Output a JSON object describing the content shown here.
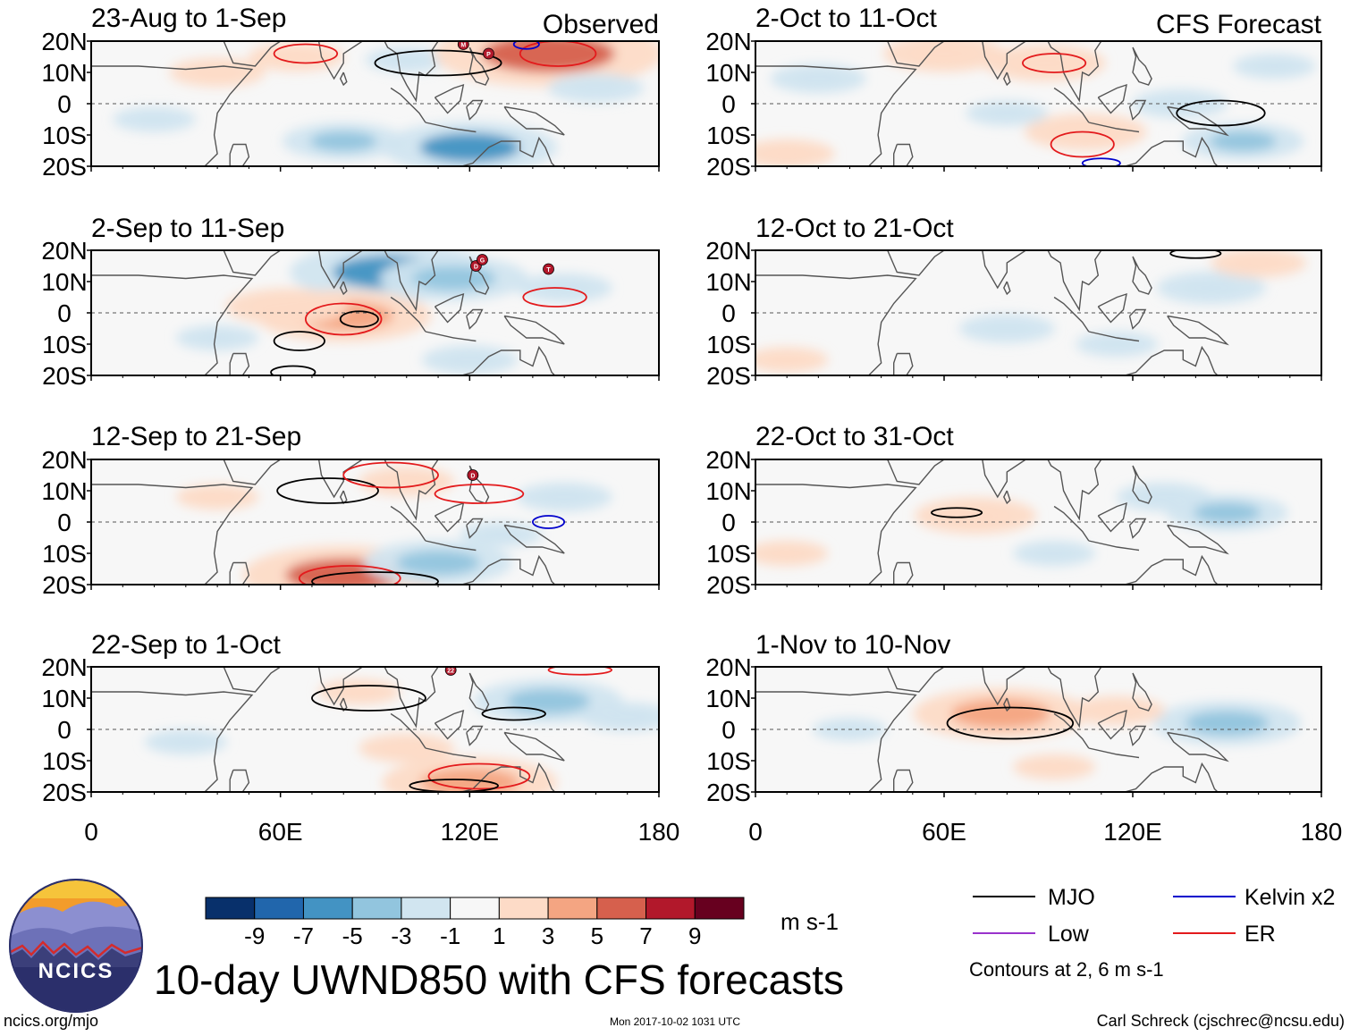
{
  "figure": {
    "title": "10-day UWND850 with CFS forecasts",
    "left_header": "Observed",
    "right_header": "CFS Forecast",
    "source_url": "ncics.org/mjo",
    "timestamp": "Mon 2017-10-02 1031 UTC",
    "author": "Carl Schreck (cjschrec@ncsu.edu)",
    "logo_text": "NCICS"
  },
  "colors": {
    "bins": [
      "#08306b",
      "#2166ac",
      "#4393c3",
      "#92c5de",
      "#d1e5f0",
      "#f7f7f7",
      "#fddbc7",
      "#f4a582",
      "#d6604d",
      "#b2182b",
      "#67001f"
    ],
    "mjo": "#000000",
    "kelvin": "#0000cc",
    "low": "#9933cc",
    "er": "#e31a1c",
    "coast": "#555555",
    "ocean": "#e7f1f8",
    "land": "#f7f7f7"
  },
  "chart_data": {
    "type": "heatmap",
    "variable": "UWND850 anomaly",
    "units": "m s-1",
    "colorbar_ticks": [
      "-9",
      "-7",
      "-5",
      "-3",
      "-1",
      "1",
      "3",
      "5",
      "7",
      "9"
    ],
    "colorbar_levels": [
      -9,
      -7,
      -5,
      -3,
      -1,
      1,
      3,
      5,
      7,
      9
    ],
    "x_ticks": [
      "0",
      "60E",
      "120E",
      "180"
    ],
    "x_ticks_values": [
      0,
      60,
      120,
      180
    ],
    "y_ticks": [
      "20N",
      "10N",
      "0",
      "10S",
      "20S"
    ],
    "y_ticks_values": [
      20,
      10,
      0,
      -10,
      -20
    ],
    "xlim": [
      0,
      180
    ],
    "ylim": [
      -20,
      20
    ],
    "panels": [
      {
        "title": "23-Aug to 1-Sep",
        "source": "Observed",
        "blobs": [
          {
            "lon": 40,
            "lat": 10,
            "val": 2
          },
          {
            "lon": 100,
            "lat": 14,
            "val": -1.5
          },
          {
            "lon": 145,
            "lat": 16,
            "val": 7
          },
          {
            "lon": 120,
            "lat": -14,
            "val": -5
          },
          {
            "lon": 80,
            "lat": -12,
            "val": -3
          },
          {
            "lon": 65,
            "lat": 15,
            "val": 2
          },
          {
            "lon": 160,
            "lat": 5,
            "val": -2
          },
          {
            "lon": 20,
            "lat": -5,
            "val": -1.5
          }
        ],
        "contours": [
          {
            "kind": "mjo",
            "lon": 110,
            "lat": 13,
            "rx": 20,
            "ry": 4
          },
          {
            "kind": "er",
            "lon": 68,
            "lat": 16,
            "rx": 10,
            "ry": 3
          },
          {
            "kind": "er",
            "lon": 148,
            "lat": 16,
            "rx": 12,
            "ry": 4
          },
          {
            "kind": "kelvin",
            "lon": 138,
            "lat": 19,
            "rx": 4,
            "ry": 1.5
          }
        ],
        "storms": [
          {
            "label": "M",
            "lon": 118,
            "lat": 19
          },
          {
            "label": "P",
            "lon": 126,
            "lat": 16
          }
        ]
      },
      {
        "title": "2-Sep to 11-Sep",
        "source": "Observed",
        "blobs": [
          {
            "lon": 95,
            "lat": 13,
            "val": -6
          },
          {
            "lon": 115,
            "lat": 11,
            "val": -4
          },
          {
            "lon": 80,
            "lat": -1,
            "val": 5
          },
          {
            "lon": 62,
            "lat": 2,
            "val": 3
          },
          {
            "lon": 150,
            "lat": 8,
            "val": -2
          },
          {
            "lon": 40,
            "lat": -8,
            "val": -1.5
          },
          {
            "lon": 120,
            "lat": -15,
            "val": -2
          }
        ],
        "contours": [
          {
            "kind": "er",
            "lon": 80,
            "lat": -2,
            "rx": 12,
            "ry": 5
          },
          {
            "kind": "mjo",
            "lon": 85,
            "lat": -2,
            "rx": 6,
            "ry": 2.5
          },
          {
            "kind": "mjo",
            "lon": 66,
            "lat": -9,
            "rx": 8,
            "ry": 3
          },
          {
            "kind": "mjo",
            "lon": 64,
            "lat": -19,
            "rx": 7,
            "ry": 2
          },
          {
            "kind": "er",
            "lon": 147,
            "lat": 5,
            "rx": 10,
            "ry": 3
          }
        ],
        "storms": [
          {
            "label": "D",
            "lon": 122,
            "lat": 15
          },
          {
            "label": "G",
            "lon": 124,
            "lat": 17
          },
          {
            "label": "T",
            "lon": 145,
            "lat": 14
          }
        ]
      },
      {
        "title": "12-Sep to 21-Sep",
        "source": "Observed",
        "blobs": [
          {
            "lon": 80,
            "lat": -17,
            "val": 6
          },
          {
            "lon": 110,
            "lat": -13,
            "val": -4
          },
          {
            "lon": 100,
            "lat": 13,
            "val": 2
          },
          {
            "lon": 150,
            "lat": 8,
            "val": -2
          },
          {
            "lon": 40,
            "lat": 8,
            "val": 1.5
          },
          {
            "lon": 130,
            "lat": -4,
            "val": -1.5
          }
        ],
        "contours": [
          {
            "kind": "mjo",
            "lon": 75,
            "lat": 10,
            "rx": 16,
            "ry": 4
          },
          {
            "kind": "er",
            "lon": 95,
            "lat": 15,
            "rx": 15,
            "ry": 4
          },
          {
            "kind": "er",
            "lon": 123,
            "lat": 9,
            "rx": 14,
            "ry": 3
          },
          {
            "kind": "kelvin",
            "lon": 145,
            "lat": 0,
            "rx": 5,
            "ry": 2
          },
          {
            "kind": "er",
            "lon": 82,
            "lat": -18,
            "rx": 16,
            "ry": 4
          },
          {
            "kind": "mjo",
            "lon": 90,
            "lat": -19,
            "rx": 20,
            "ry": 3
          }
        ],
        "storms": [
          {
            "label": "D",
            "lon": 121,
            "lat": 15
          }
        ]
      },
      {
        "title": "22-Sep to 1-Oct",
        "source": "Observed",
        "blobs": [
          {
            "lon": 145,
            "lat": 9,
            "val": -4
          },
          {
            "lon": 120,
            "lat": -17,
            "val": 5
          },
          {
            "lon": 100,
            "lat": -6,
            "val": 2
          },
          {
            "lon": 170,
            "lat": 4,
            "val": -2
          },
          {
            "lon": 30,
            "lat": -4,
            "val": -1.5
          },
          {
            "lon": 85,
            "lat": 12,
            "val": 1.5
          }
        ],
        "contours": [
          {
            "kind": "mjo",
            "lon": 88,
            "lat": 10,
            "rx": 18,
            "ry": 4
          },
          {
            "kind": "mjo",
            "lon": 134,
            "lat": 5,
            "rx": 10,
            "ry": 2
          },
          {
            "kind": "er",
            "lon": 123,
            "lat": -15,
            "rx": 16,
            "ry": 4
          },
          {
            "kind": "mjo",
            "lon": 115,
            "lat": -18,
            "rx": 14,
            "ry": 2
          },
          {
            "kind": "er",
            "lon": 155,
            "lat": 19,
            "rx": 10,
            "ry": 1.5
          }
        ],
        "storms": [
          {
            "label": "22",
            "lon": 114,
            "lat": 19
          }
        ]
      },
      {
        "title": "2-Oct to 11-Oct",
        "source": "CFS Forecast",
        "blobs": [
          {
            "lon": 60,
            "lat": 16,
            "val": 3
          },
          {
            "lon": 92,
            "lat": 13,
            "val": 3
          },
          {
            "lon": 105,
            "lat": -9,
            "val": 3
          },
          {
            "lon": 155,
            "lat": -12,
            "val": -3
          },
          {
            "lon": 135,
            "lat": 0,
            "val": -2
          },
          {
            "lon": 20,
            "lat": 8,
            "val": -2
          },
          {
            "lon": 10,
            "lat": -16,
            "val": 2
          },
          {
            "lon": 80,
            "lat": -3,
            "val": -1.5
          },
          {
            "lon": 165,
            "lat": 12,
            "val": -1.5
          }
        ],
        "contours": [
          {
            "kind": "er",
            "lon": 95,
            "lat": 13,
            "rx": 10,
            "ry": 3
          },
          {
            "kind": "er",
            "lon": 104,
            "lat": -13,
            "rx": 10,
            "ry": 4
          },
          {
            "kind": "mjo",
            "lon": 148,
            "lat": -3,
            "rx": 14,
            "ry": 4
          },
          {
            "kind": "kelvin",
            "lon": 110,
            "lat": -19,
            "rx": 6,
            "ry": 1.5
          }
        ],
        "storms": []
      },
      {
        "title": "12-Oct to 21-Oct",
        "source": "CFS Forecast",
        "blobs": [
          {
            "lon": 145,
            "lat": 8,
            "val": -2.5
          },
          {
            "lon": 160,
            "lat": 16,
            "val": 2
          },
          {
            "lon": 80,
            "lat": -5,
            "val": -2
          },
          {
            "lon": 10,
            "lat": -15,
            "val": 1.5
          },
          {
            "lon": 115,
            "lat": -10,
            "val": -1.5
          }
        ],
        "contours": [
          {
            "kind": "mjo",
            "lon": 140,
            "lat": 19,
            "rx": 8,
            "ry": 1.5
          }
        ],
        "storms": []
      },
      {
        "title": "22-Oct to 31-Oct",
        "source": "CFS Forecast",
        "blobs": [
          {
            "lon": 70,
            "lat": 2,
            "val": 3
          },
          {
            "lon": 150,
            "lat": 3,
            "val": -3
          },
          {
            "lon": 130,
            "lat": 8,
            "val": -2
          },
          {
            "lon": 95,
            "lat": -10,
            "val": -1.5
          },
          {
            "lon": 10,
            "lat": -10,
            "val": 1.5
          }
        ],
        "contours": [
          {
            "kind": "mjo",
            "lon": 64,
            "lat": 3,
            "rx": 8,
            "ry": 1.5
          }
        ],
        "storms": []
      },
      {
        "title": "1-Nov to 10-Nov",
        "source": "CFS Forecast",
        "blobs": [
          {
            "lon": 78,
            "lat": 5,
            "val": 5
          },
          {
            "lon": 150,
            "lat": 2,
            "val": -4
          },
          {
            "lon": 115,
            "lat": 6,
            "val": 2
          },
          {
            "lon": 95,
            "lat": -12,
            "val": 1.5
          },
          {
            "lon": 30,
            "lat": 0,
            "val": -1.2
          }
        ],
        "contours": [
          {
            "kind": "mjo",
            "lon": 81,
            "lat": 2,
            "rx": 20,
            "ry": 5
          }
        ],
        "storms": []
      }
    ]
  },
  "legend": {
    "entries": [
      {
        "label": "MJO",
        "color": "#000000"
      },
      {
        "label": "Kelvin x2",
        "color": "#0000cc"
      },
      {
        "label": "Low",
        "color": "#9933cc"
      },
      {
        "label": "ER",
        "color": "#e31a1c"
      }
    ],
    "note": "Contours at 2, 6 m s-1"
  }
}
